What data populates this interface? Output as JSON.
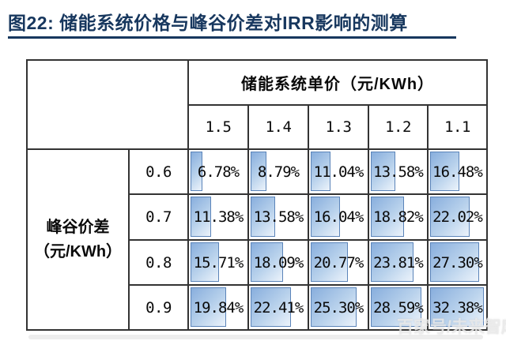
{
  "figure": {
    "title": "图22: 储能系统价格与峰谷价差对IRR影响的测算",
    "watermark": "百家号/未来智库"
  },
  "colors": {
    "title_navy": "#17375E",
    "header_blue": "#BDD7EE",
    "grid_border": "#333333",
    "bar_border": "#5b84b9",
    "bar_gradient_start": "#88aedd",
    "bar_gradient_end": "#ecf3fb"
  },
  "chart_data": {
    "type": "table",
    "title": "储能系统价格与峰谷价差对IRR影响的测算",
    "column_group_header": "储能系统单价（元/KWh）",
    "row_group_header": "峰谷价差（元/KWh）",
    "row_group_header_line1": "峰谷价差",
    "row_group_header_line2": "（元/KWh）",
    "columns": [
      "1.5",
      "1.4",
      "1.3",
      "1.2",
      "1.1"
    ],
    "rows": [
      "0.6",
      "0.7",
      "0.8",
      "0.9"
    ],
    "values": [
      [
        "6.78%",
        "8.79%",
        "11.04%",
        "13.58%",
        "16.48%"
      ],
      [
        "11.38%",
        "13.58%",
        "16.04%",
        "18.82%",
        "22.02%"
      ],
      [
        "15.71%",
        "18.09%",
        "20.77%",
        "23.81%",
        "27.30%"
      ],
      [
        "19.84%",
        "22.41%",
        "25.30%",
        "28.59%",
        "32.38%"
      ]
    ],
    "bar_scale_max": 32.38,
    "legend_position": "none",
    "notes": "blue gradient data bars inside cells, length proportional to IRR value"
  }
}
